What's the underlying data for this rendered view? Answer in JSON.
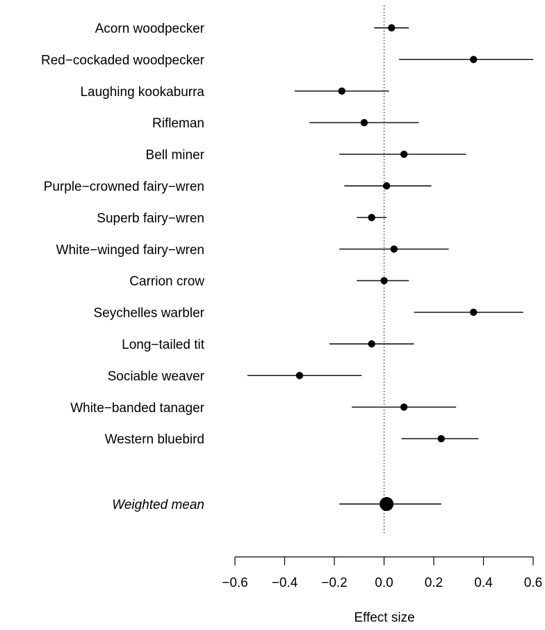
{
  "chart_data": {
    "type": "forest",
    "xlabel": "Effect size",
    "xlim": [
      -0.6,
      0.6
    ],
    "xticks": [
      -0.6,
      -0.4,
      -0.2,
      0.0,
      0.2,
      0.4,
      0.6
    ],
    "xtick_labels": [
      "−0.6",
      "−0.4",
      "−0.2",
      "0.0",
      "0.2",
      "0.4",
      "0.6"
    ],
    "reference_line": 0,
    "rows": [
      {
        "label": "Acorn woodpecker",
        "estimate": 0.03,
        "lower": -0.04,
        "upper": 0.1
      },
      {
        "label": "Red−cockaded woodpecker",
        "estimate": 0.36,
        "lower": 0.06,
        "upper": 0.6
      },
      {
        "label": "Laughing kookaburra",
        "estimate": -0.17,
        "lower": -0.36,
        "upper": 0.02
      },
      {
        "label": "Rifleman",
        "estimate": -0.08,
        "lower": -0.3,
        "upper": 0.14
      },
      {
        "label": "Bell miner",
        "estimate": 0.08,
        "lower": -0.18,
        "upper": 0.33
      },
      {
        "label": "Purple−crowned fairy−wren",
        "estimate": 0.01,
        "lower": -0.16,
        "upper": 0.19
      },
      {
        "label": "Superb fairy−wren",
        "estimate": -0.05,
        "lower": -0.11,
        "upper": 0.01
      },
      {
        "label": "White−winged fairy−wren",
        "estimate": 0.04,
        "lower": -0.18,
        "upper": 0.26
      },
      {
        "label": "Carrion crow",
        "estimate": 0.0,
        "lower": -0.11,
        "upper": 0.1
      },
      {
        "label": "Seychelles warbler",
        "estimate": 0.36,
        "lower": 0.12,
        "upper": 0.56
      },
      {
        "label": "Long−tailed tit",
        "estimate": -0.05,
        "lower": -0.22,
        "upper": 0.12
      },
      {
        "label": "Sociable weaver",
        "estimate": -0.34,
        "lower": -0.55,
        "upper": -0.09
      },
      {
        "label": "White−banded tanager",
        "estimate": 0.08,
        "lower": -0.13,
        "upper": 0.29
      },
      {
        "label": "Western bluebird",
        "estimate": 0.23,
        "lower": 0.07,
        "upper": 0.38
      }
    ],
    "summary": {
      "label": "Weighted mean",
      "estimate": 0.01,
      "lower": -0.18,
      "upper": 0.23
    }
  }
}
